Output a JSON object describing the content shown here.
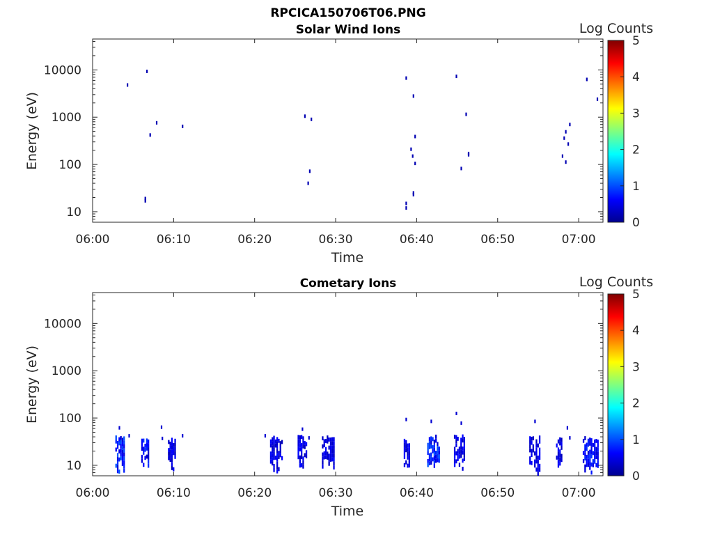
{
  "figure_title": "RPCICA150706T06.PNG",
  "colorbar": {
    "label": "Log Counts",
    "min": 0,
    "max": 5,
    "ticks": [
      "0",
      "1",
      "2",
      "3",
      "4",
      "5"
    ]
  },
  "chart_data": [
    {
      "type": "heatmap",
      "title": "Solar Wind Ions",
      "xlabel": "Time",
      "ylabel": "Energy (eV)",
      "x_unit": "minutes after 06:00",
      "xlim": [
        0,
        63
      ],
      "ylim": [
        6,
        45000
      ],
      "yscale": "log",
      "xtick_labels": [
        "06:00",
        "06:10",
        "06:20",
        "06:30",
        "06:40",
        "06:50",
        "07:00"
      ],
      "ytick_labels": [
        "10",
        "100",
        "1000",
        "10000"
      ],
      "points": [
        {
          "t": 4.3,
          "e": 4800,
          "v": 0.1
        },
        {
          "t": 6.7,
          "e": 9300,
          "v": 0.1
        },
        {
          "t": 6.5,
          "e": 19,
          "v": 0.1
        },
        {
          "t": 6.5,
          "e": 17,
          "v": 0.1
        },
        {
          "t": 7.1,
          "e": 420,
          "v": 0.1
        },
        {
          "t": 7.9,
          "e": 760,
          "v": 0.1
        },
        {
          "t": 11.1,
          "e": 640,
          "v": 0.1
        },
        {
          "t": 26.2,
          "e": 1050,
          "v": 0.1
        },
        {
          "t": 27.0,
          "e": 900,
          "v": 0.1
        },
        {
          "t": 26.8,
          "e": 72,
          "v": 0.1
        },
        {
          "t": 26.6,
          "e": 40,
          "v": 0.1
        },
        {
          "t": 38.7,
          "e": 6700,
          "v": 0.1
        },
        {
          "t": 38.7,
          "e": 15,
          "v": 0.1
        },
        {
          "t": 38.7,
          "e": 12,
          "v": 0.1
        },
        {
          "t": 39.6,
          "e": 2800,
          "v": 0.1
        },
        {
          "t": 39.8,
          "e": 390,
          "v": 0.1
        },
        {
          "t": 39.3,
          "e": 210,
          "v": 0.1
        },
        {
          "t": 39.5,
          "e": 150,
          "v": 0.1
        },
        {
          "t": 39.8,
          "e": 105,
          "v": 0.1
        },
        {
          "t": 39.6,
          "e": 25,
          "v": 0.1
        },
        {
          "t": 39.6,
          "e": 23,
          "v": 0.1
        },
        {
          "t": 44.9,
          "e": 7300,
          "v": 0.1
        },
        {
          "t": 45.5,
          "e": 82,
          "v": 0.1
        },
        {
          "t": 46.1,
          "e": 1150,
          "v": 0.1
        },
        {
          "t": 46.4,
          "e": 170,
          "v": 0.1
        },
        {
          "t": 46.4,
          "e": 160,
          "v": 0.1
        },
        {
          "t": 58.0,
          "e": 150,
          "v": 0.1
        },
        {
          "t": 58.2,
          "e": 360,
          "v": 0.1
        },
        {
          "t": 58.4,
          "e": 490,
          "v": 0.1
        },
        {
          "t": 58.4,
          "e": 112,
          "v": 0.1
        },
        {
          "t": 58.7,
          "e": 270,
          "v": 0.1
        },
        {
          "t": 58.9,
          "e": 700,
          "v": 0.1
        },
        {
          "t": 61.0,
          "e": 6300,
          "v": 0.1
        },
        {
          "t": 62.3,
          "e": 2400,
          "v": 0.1
        }
      ]
    },
    {
      "type": "heatmap",
      "title": "Cometary Ions",
      "xlabel": "Time",
      "ylabel": "Energy (eV)",
      "x_unit": "minutes after 06:00",
      "xlim": [
        0,
        63
      ],
      "ylim": [
        6,
        45000
      ],
      "yscale": "log",
      "xtick_labels": [
        "06:00",
        "06:10",
        "06:20",
        "06:30",
        "06:40",
        "06:50",
        "07:00"
      ],
      "ytick_labels": [
        "10",
        "100",
        "1000",
        "10000"
      ],
      "clusters": [
        {
          "t0": 2.8,
          "t1": 3.9,
          "e0": 6,
          "e1": 45,
          "v": 0.5
        },
        {
          "t0": 6.0,
          "t1": 6.8,
          "e0": 9,
          "e1": 40,
          "v": 0.4
        },
        {
          "t0": 9.3,
          "t1": 10.2,
          "e0": 8,
          "e1": 40,
          "v": 0.3
        },
        {
          "t0": 21.9,
          "t1": 23.3,
          "e0": 7,
          "e1": 45,
          "v": 0.3
        },
        {
          "t0": 25.3,
          "t1": 26.3,
          "e0": 9,
          "e1": 45,
          "v": 0.3
        },
        {
          "t0": 28.3,
          "t1": 29.7,
          "e0": 8,
          "e1": 45,
          "v": 0.3
        },
        {
          "t0": 38.4,
          "t1": 39.1,
          "e0": 8,
          "e1": 42,
          "v": 0.3
        },
        {
          "t0": 41.3,
          "t1": 42.7,
          "e0": 8,
          "e1": 45,
          "v": 0.5
        },
        {
          "t0": 44.6,
          "t1": 45.9,
          "e0": 8,
          "e1": 45,
          "v": 0.3
        },
        {
          "t0": 53.9,
          "t1": 55.2,
          "e0": 6,
          "e1": 45,
          "v": 0.3
        },
        {
          "t0": 57.2,
          "t1": 57.9,
          "e0": 8,
          "e1": 40,
          "v": 0.3
        },
        {
          "t0": 60.5,
          "t1": 62.3,
          "e0": 7,
          "e1": 45,
          "v": 0.4
        }
      ],
      "points": [
        {
          "t": 3.3,
          "e": 62,
          "v": 0.2
        },
        {
          "t": 4.5,
          "e": 42,
          "v": 0.2
        },
        {
          "t": 8.5,
          "e": 64,
          "v": 0.2
        },
        {
          "t": 8.6,
          "e": 37,
          "v": 0.2
        },
        {
          "t": 11.1,
          "e": 42,
          "v": 0.2
        },
        {
          "t": 21.3,
          "e": 42,
          "v": 0.2
        },
        {
          "t": 25.9,
          "e": 58,
          "v": 0.2
        },
        {
          "t": 26.7,
          "e": 38,
          "v": 0.2
        },
        {
          "t": 38.7,
          "e": 93,
          "v": 0.2
        },
        {
          "t": 41.8,
          "e": 85,
          "v": 0.2
        },
        {
          "t": 44.9,
          "e": 125,
          "v": 0.2
        },
        {
          "t": 45.5,
          "e": 78,
          "v": 0.2
        },
        {
          "t": 54.6,
          "e": 85,
          "v": 0.2
        },
        {
          "t": 58.6,
          "e": 62,
          "v": 0.2
        },
        {
          "t": 58.9,
          "e": 38,
          "v": 0.2
        }
      ]
    }
  ]
}
